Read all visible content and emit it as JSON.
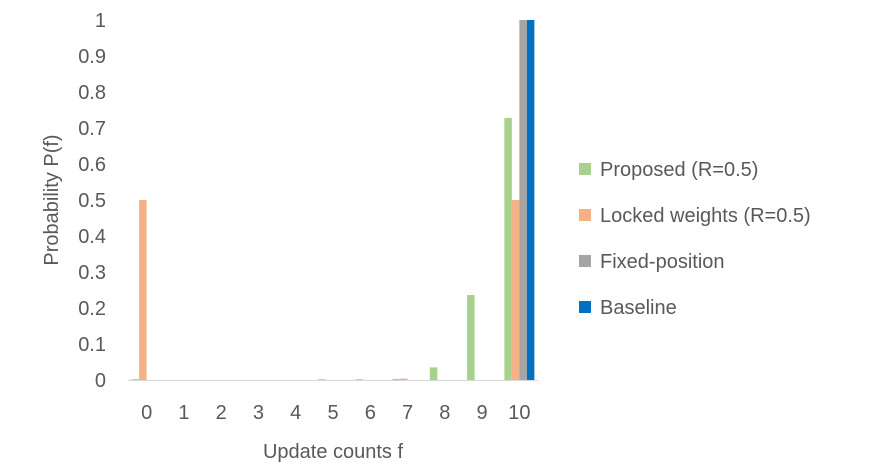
{
  "chart_data": {
    "type": "bar",
    "title": "",
    "xlabel": "Update counts f",
    "ylabel": "Probability P(f)",
    "ylim": [
      0,
      1
    ],
    "yticks": [
      0,
      0.1,
      0.2,
      0.3,
      0.4,
      0.5,
      0.6,
      0.7,
      0.8,
      0.9,
      1
    ],
    "ytick_labels": [
      "0",
      "0.1",
      "0.2",
      "0.3",
      "0.4",
      "0.5",
      "0.6",
      "0.7",
      "0.8",
      "0.9",
      "1"
    ],
    "categories": [
      "0",
      "1",
      "2",
      "3",
      "4",
      "5",
      "6",
      "7",
      "8",
      "9",
      "10"
    ],
    "grid": false,
    "legend_position": "right",
    "series": [
      {
        "name": "Proposed (R=0.5)",
        "color": "#a9d18e",
        "values": [
          0.001,
          0,
          0,
          0,
          0,
          0.001,
          0.002,
          0.003,
          0.035,
          0.236,
          0.728
        ]
      },
      {
        "name": "Locked weights (R=0.5)",
        "color": "#f4b183",
        "values": [
          0.5,
          0,
          0,
          0,
          0,
          0,
          0,
          0.004,
          0,
          0,
          0.5
        ]
      },
      {
        "name": "Fixed-position",
        "color": "#a5a5a5",
        "values": [
          0,
          0,
          0,
          0,
          0,
          0,
          0,
          0,
          0,
          0,
          1
        ]
      },
      {
        "name": "Baseline",
        "color": "#0070c0",
        "values": [
          0,
          0,
          0,
          0,
          0,
          0,
          0,
          0,
          0,
          0,
          1
        ]
      }
    ]
  }
}
